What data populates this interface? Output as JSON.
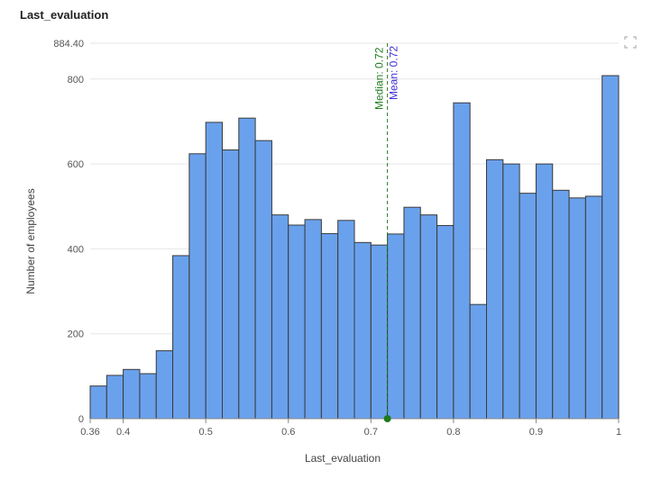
{
  "panel": {
    "title": "Last_evaluation"
  },
  "icons": {
    "expand": "expand-icon"
  },
  "colors": {
    "bar_fill": "#6aa1ec",
    "bar_stroke": "#3a3a3a",
    "median": "#1e7b1e",
    "mean": "#3b2bd6",
    "grid": "#e6e6e6"
  },
  "chart_data": {
    "type": "bar",
    "title": "",
    "xlabel": "Last_evaluation",
    "ylabel": "Number of employees",
    "xlim": [
      0.36,
      1
    ],
    "ylim": [
      0,
      884.4
    ],
    "x_ticks": [
      "0.36",
      "0.4",
      "0.5",
      "0.6",
      "0.7",
      "0.8",
      "0.9",
      "1"
    ],
    "x_tick_values": [
      0.36,
      0.4,
      0.5,
      0.6,
      0.7,
      0.8,
      0.9,
      1
    ],
    "y_ticks": [
      "0",
      "200",
      "400",
      "600",
      "800",
      "884.40"
    ],
    "y_tick_values": [
      0,
      200,
      400,
      600,
      800,
      884.4
    ],
    "bin_edges": [
      0.36,
      0.38,
      0.4,
      0.42,
      0.44,
      0.46,
      0.48,
      0.5,
      0.52,
      0.54,
      0.56,
      0.58,
      0.6,
      0.62,
      0.64,
      0.66,
      0.68,
      0.7,
      0.72,
      0.74,
      0.76,
      0.78,
      0.8,
      0.82,
      0.84,
      0.86,
      0.88,
      0.9,
      0.92,
      0.94,
      0.96,
      0.98,
      1.0
    ],
    "values": [
      77,
      102,
      116,
      106,
      160,
      384,
      624,
      698,
      633,
      708,
      655,
      480,
      456,
      469,
      436,
      467,
      415,
      409,
      435,
      498,
      480,
      455,
      744,
      269,
      610,
      600,
      531,
      600,
      538,
      520,
      524,
      808
    ],
    "grid": true,
    "markers": [
      {
        "label": "Median: 0.72",
        "value": 0.72
      },
      {
        "label": "Mean: 0.72",
        "value": 0.72
      }
    ]
  }
}
